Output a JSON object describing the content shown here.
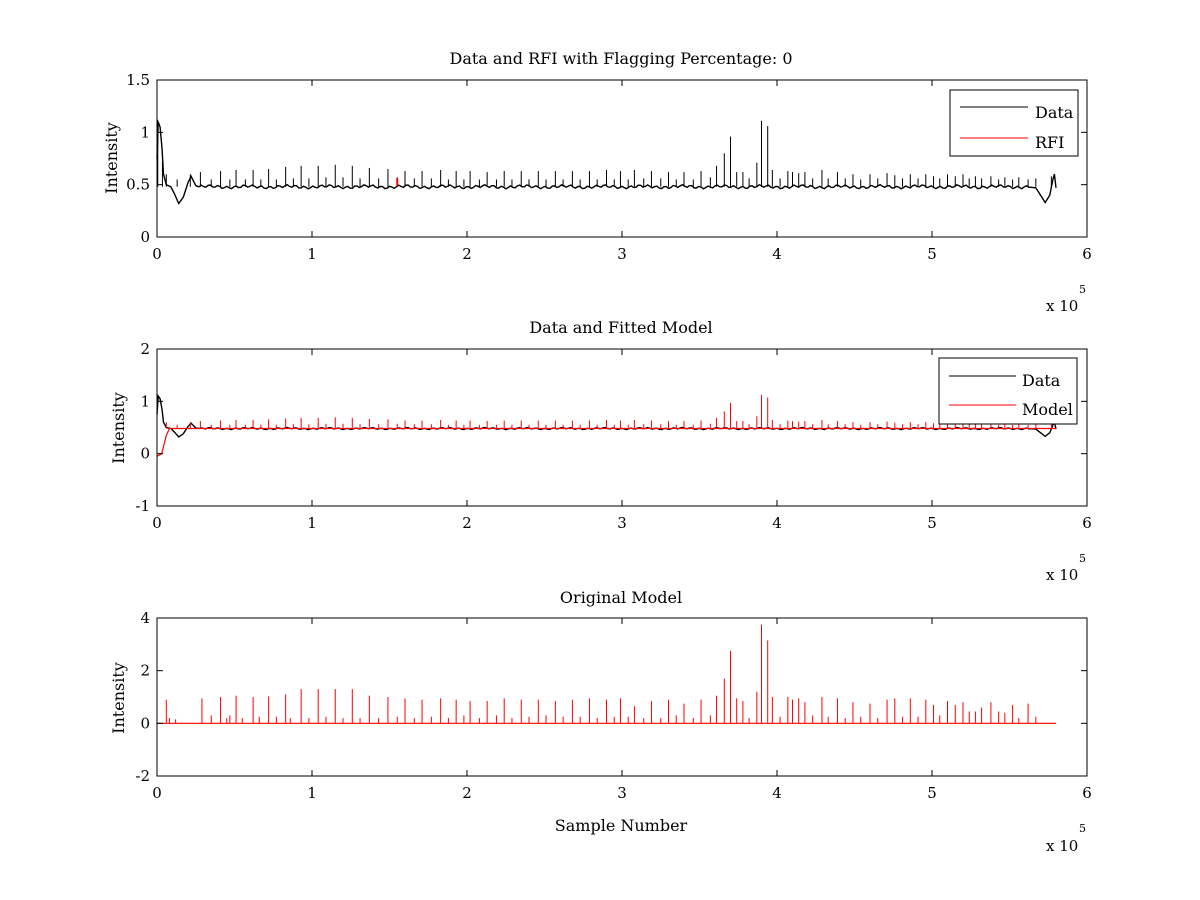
{
  "chart_data": [
    {
      "type": "line",
      "title": "Data and RFI with Flagging Percentage: 0",
      "xlabel": "",
      "ylabel": "Intensity",
      "xlim": [
        0,
        600000
      ],
      "ylim": [
        0,
        1.5
      ],
      "xticks": [
        "0",
        "1",
        "2",
        "3",
        "4",
        "5",
        "6"
      ],
      "yticks": [
        "0",
        "0.5",
        "1",
        "1.5"
      ],
      "x_multiplier": "x 10",
      "x_multiplier_exp": "5",
      "legend": {
        "location": "top-right",
        "entries": [
          "Data",
          "RFI"
        ]
      },
      "series": [
        {
          "name": "Data",
          "color": "#000000",
          "baseline": 0.48,
          "dip_start": {
            "x": 14000,
            "y": 0.32
          },
          "dip_end": {
            "x": 573000,
            "y": 0.33
          },
          "x_end": 580000,
          "spikes": [
            [
              500,
              1.12
            ],
            [
              3500,
              0.72
            ],
            [
              6000,
              0.6
            ],
            [
              13000,
              0.55
            ],
            [
              21500,
              0.6
            ],
            [
              28000,
              0.62
            ],
            [
              35000,
              0.55
            ],
            [
              41000,
              0.63
            ],
            [
              47000,
              0.55
            ],
            [
              51000,
              0.64
            ],
            [
              57000,
              0.55
            ],
            [
              62000,
              0.64
            ],
            [
              67000,
              0.55
            ],
            [
              72000,
              0.65
            ],
            [
              77000,
              0.55
            ],
            [
              83000,
              0.67
            ],
            [
              88000,
              0.56
            ],
            [
              93000,
              0.68
            ],
            [
              98000,
              0.56
            ],
            [
              104000,
              0.68
            ],
            [
              109000,
              0.57
            ],
            [
              115000,
              0.69
            ],
            [
              120000,
              0.57
            ],
            [
              126000,
              0.68
            ],
            [
              131000,
              0.56
            ],
            [
              137000,
              0.66
            ],
            [
              143000,
              0.56
            ],
            [
              149000,
              0.65
            ],
            [
              155000,
              0.57
            ],
            [
              160000,
              0.63
            ],
            [
              166000,
              0.56
            ],
            [
              171000,
              0.63
            ],
            [
              177000,
              0.56
            ],
            [
              183000,
              0.64
            ],
            [
              188000,
              0.55
            ],
            [
              193000,
              0.63
            ],
            [
              198000,
              0.55
            ],
            [
              202000,
              0.63
            ],
            [
              208000,
              0.55
            ],
            [
              213000,
              0.62
            ],
            [
              219000,
              0.55
            ],
            [
              224000,
              0.63
            ],
            [
              229000,
              0.55
            ],
            [
              235000,
              0.63
            ],
            [
              240000,
              0.55
            ],
            [
              246000,
              0.63
            ],
            [
              251000,
              0.55
            ],
            [
              257000,
              0.63
            ],
            [
              262000,
              0.55
            ],
            [
              268000,
              0.63
            ],
            [
              273000,
              0.55
            ],
            [
              279000,
              0.63
            ],
            [
              284000,
              0.55
            ],
            [
              290000,
              0.64
            ],
            [
              295000,
              0.55
            ],
            [
              299000,
              0.63
            ],
            [
              304000,
              0.55
            ],
            [
              308000,
              0.64
            ],
            [
              314000,
              0.56
            ],
            [
              319000,
              0.63
            ],
            [
              325000,
              0.56
            ],
            [
              330000,
              0.62
            ],
            [
              335000,
              0.55
            ],
            [
              340000,
              0.62
            ],
            [
              346000,
              0.55
            ],
            [
              351000,
              0.63
            ],
            [
              357000,
              0.57
            ],
            [
              361000,
              0.68
            ],
            [
              366000,
              0.8
            ],
            [
              370000,
              0.96
            ],
            [
              374000,
              0.62
            ],
            [
              378000,
              0.62
            ],
            [
              382000,
              0.56
            ],
            [
              387000,
              0.71
            ],
            [
              390000,
              1.11
            ],
            [
              394000,
              1.06
            ],
            [
              397000,
              0.64
            ],
            [
              402000,
              0.56
            ],
            [
              407000,
              0.63
            ],
            [
              410000,
              0.62
            ],
            [
              414000,
              0.61
            ],
            [
              418000,
              0.62
            ],
            [
              423000,
              0.56
            ],
            [
              429000,
              0.64
            ],
            [
              433000,
              0.56
            ],
            [
              439000,
              0.62
            ],
            [
              444000,
              0.56
            ],
            [
              449000,
              0.6
            ],
            [
              454000,
              0.55
            ],
            [
              460000,
              0.6
            ],
            [
              465000,
              0.56
            ],
            [
              471000,
              0.61
            ],
            [
              476000,
              0.59
            ],
            [
              481000,
              0.56
            ],
            [
              486000,
              0.6
            ],
            [
              491000,
              0.56
            ],
            [
              496000,
              0.6
            ],
            [
              501000,
              0.58
            ],
            [
              505000,
              0.56
            ],
            [
              510000,
              0.6
            ],
            [
              515000,
              0.58
            ],
            [
              520000,
              0.6
            ],
            [
              524000,
              0.56
            ],
            [
              528000,
              0.58
            ],
            [
              532000,
              0.56
            ],
            [
              538000,
              0.58
            ],
            [
              543000,
              0.55
            ],
            [
              547000,
              0.57
            ],
            [
              552000,
              0.55
            ],
            [
              556000,
              0.57
            ],
            [
              562000,
              0.55
            ],
            [
              567000,
              0.56
            ],
            [
              577000,
              0.58
            ]
          ]
        },
        {
          "name": "RFI",
          "color": "#ff0000",
          "points": [
            [
              155000,
              0.56
            ]
          ]
        }
      ]
    },
    {
      "type": "line",
      "title": "Data and Fitted Model",
      "xlabel": "",
      "ylabel": "Intensity",
      "xlim": [
        0,
        600000
      ],
      "ylim": [
        -1,
        2
      ],
      "xticks": [
        "0",
        "1",
        "2",
        "3",
        "4",
        "5",
        "6"
      ],
      "yticks": [
        "-1",
        "0",
        "1",
        "2"
      ],
      "x_multiplier": "x 10",
      "x_multiplier_exp": "5",
      "legend": {
        "location": "top-right",
        "entries": [
          "Data",
          "Model"
        ]
      },
      "series": [
        {
          "name": "Data",
          "color": "#000000",
          "baseline": 0.48,
          "dip_start": {
            "x": 14000,
            "y": 0.32
          },
          "dip_end": {
            "x": 573000,
            "y": 0.33
          },
          "x_end": 580000
        },
        {
          "name": "Model",
          "color": "#ff0000",
          "baseline": 0.48,
          "start_dip": [
            [
              0,
              -0.05
            ],
            [
              3000,
              0.0
            ],
            [
              6000,
              0.35
            ],
            [
              8000,
              0.48
            ]
          ],
          "x_end": 580000,
          "spikes_same_as": "Data and RFI spikes",
          "max_spike": 1.15
        }
      ]
    },
    {
      "type": "line",
      "title": "Original Model",
      "xlabel": "Sample Number",
      "ylabel": "Intensity",
      "xlim": [
        0,
        600000
      ],
      "ylim": [
        -2,
        4
      ],
      "xticks": [
        "0",
        "1",
        "2",
        "3",
        "4",
        "5",
        "6"
      ],
      "yticks": [
        "-2",
        "0",
        "2",
        "4"
      ],
      "x_multiplier": "x 10",
      "x_multiplier_exp": "5",
      "series": [
        {
          "name": "",
          "color": "#ff0000",
          "baseline": 0.0,
          "x_end": 580000,
          "spikes": [
            [
              6000,
              0.9
            ],
            [
              8000,
              0.2
            ],
            [
              12000,
              0.15
            ],
            [
              29000,
              0.95
            ],
            [
              35000,
              0.3
            ],
            [
              41000,
              1.0
            ],
            [
              45000,
              0.2
            ],
            [
              47000,
              0.3
            ],
            [
              51000,
              1.05
            ],
            [
              55000,
              0.2
            ],
            [
              62000,
              1.0
            ],
            [
              66000,
              0.25
            ],
            [
              72000,
              1.02
            ],
            [
              77000,
              0.25
            ],
            [
              83000,
              1.1
            ],
            [
              86000,
              0.2
            ],
            [
              93000,
              1.3
            ],
            [
              98000,
              0.2
            ],
            [
              104000,
              1.3
            ],
            [
              109000,
              0.25
            ],
            [
              115000,
              1.3
            ],
            [
              120000,
              0.2
            ],
            [
              126000,
              1.3
            ],
            [
              131000,
              0.2
            ],
            [
              137000,
              1.05
            ],
            [
              143000,
              0.2
            ],
            [
              149000,
              1.0
            ],
            [
              155000,
              0.25
            ],
            [
              160000,
              0.95
            ],
            [
              166000,
              0.2
            ],
            [
              171000,
              0.9
            ],
            [
              177000,
              0.25
            ],
            [
              183000,
              0.95
            ],
            [
              188000,
              0.2
            ],
            [
              193000,
              0.9
            ],
            [
              198000,
              0.3
            ],
            [
              202000,
              0.85
            ],
            [
              208000,
              0.2
            ],
            [
              213000,
              0.85
            ],
            [
              219000,
              0.3
            ],
            [
              224000,
              0.95
            ],
            [
              229000,
              0.2
            ],
            [
              235000,
              0.9
            ],
            [
              240000,
              0.25
            ],
            [
              246000,
              0.9
            ],
            [
              251000,
              0.3
            ],
            [
              257000,
              0.85
            ],
            [
              262000,
              0.25
            ],
            [
              268000,
              0.9
            ],
            [
              273000,
              0.25
            ],
            [
              279000,
              0.95
            ],
            [
              284000,
              0.2
            ],
            [
              290000,
              0.9
            ],
            [
              295000,
              0.25
            ],
            [
              299000,
              0.95
            ],
            [
              304000,
              0.25
            ],
            [
              308000,
              0.65
            ],
            [
              314000,
              0.2
            ],
            [
              319000,
              0.85
            ],
            [
              325000,
              0.2
            ],
            [
              330000,
              0.9
            ],
            [
              335000,
              0.3
            ],
            [
              340000,
              0.75
            ],
            [
              346000,
              0.2
            ],
            [
              351000,
              0.9
            ],
            [
              357000,
              0.3
            ],
            [
              361000,
              1.05
            ],
            [
              366000,
              1.7
            ],
            [
              370000,
              2.75
            ],
            [
              374000,
              0.95
            ],
            [
              378000,
              0.85
            ],
            [
              382000,
              0.2
            ],
            [
              387000,
              1.2
            ],
            [
              390000,
              3.75
            ],
            [
              394000,
              3.15
            ],
            [
              397000,
              1.0
            ],
            [
              402000,
              0.25
            ],
            [
              407000,
              1.0
            ],
            [
              410000,
              0.9
            ],
            [
              414000,
              0.95
            ],
            [
              418000,
              0.8
            ],
            [
              423000,
              0.3
            ],
            [
              429000,
              1.0
            ],
            [
              433000,
              0.25
            ],
            [
              439000,
              0.95
            ],
            [
              444000,
              0.2
            ],
            [
              449000,
              0.8
            ],
            [
              454000,
              0.25
            ],
            [
              460000,
              0.75
            ],
            [
              465000,
              0.2
            ],
            [
              471000,
              0.9
            ],
            [
              476000,
              0.95
            ],
            [
              481000,
              0.25
            ],
            [
              486000,
              0.95
            ],
            [
              491000,
              0.25
            ],
            [
              496000,
              0.9
            ],
            [
              501000,
              0.7
            ],
            [
              505000,
              0.3
            ],
            [
              510000,
              0.85
            ],
            [
              515000,
              0.7
            ],
            [
              520000,
              0.8
            ],
            [
              524000,
              0.45
            ],
            [
              528000,
              0.45
            ],
            [
              532000,
              0.6
            ],
            [
              538000,
              0.8
            ],
            [
              543000,
              0.45
            ],
            [
              547000,
              0.4
            ],
            [
              552000,
              0.7
            ],
            [
              556000,
              0.2
            ],
            [
              562000,
              0.75
            ],
            [
              567000,
              0.25
            ]
          ]
        }
      ]
    }
  ]
}
